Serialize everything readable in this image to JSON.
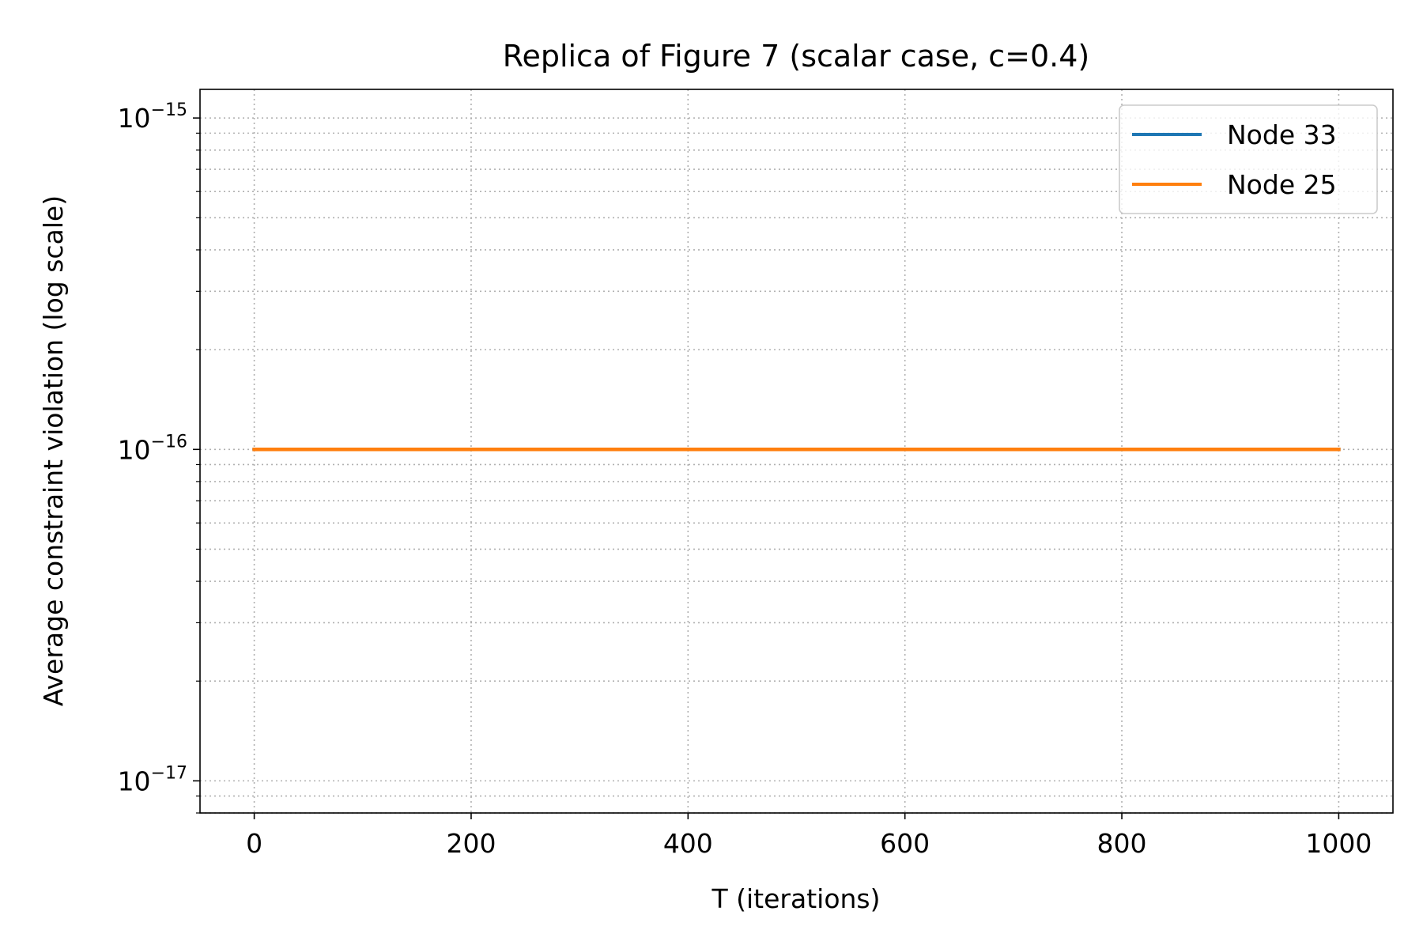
{
  "chart_data": {
    "type": "line",
    "title": "Replica of Figure 7 (scalar case, c=0.4)",
    "xlabel": "T (iterations)",
    "ylabel": "Average constraint violation (log scale)",
    "xlim": [
      -50,
      1050
    ],
    "ylim": [
      8e-18,
      1.22e-15
    ],
    "yscale": "log",
    "grid": true,
    "legend_position": "top-right",
    "x_ticks": [
      0,
      200,
      400,
      600,
      800,
      1000
    ],
    "x_tick_labels": [
      "0",
      "200",
      "400",
      "600",
      "800",
      "1000"
    ],
    "y_ticks": [
      {
        "value": 1e-17,
        "base": "10",
        "exp": "−17"
      },
      {
        "value": 1e-16,
        "base": "10",
        "exp": "−16"
      },
      {
        "value": 1e-15,
        "base": "10",
        "exp": "−15"
      }
    ],
    "series": [
      {
        "name": "Node 33",
        "color": "#1f77b4",
        "x": [
          0,
          1000
        ],
        "y": [
          1e-16,
          1e-16
        ]
      },
      {
        "name": "Node 25",
        "color": "#ff7f0e",
        "x": [
          0,
          1000
        ],
        "y": [
          1e-16,
          1e-16
        ]
      }
    ]
  }
}
